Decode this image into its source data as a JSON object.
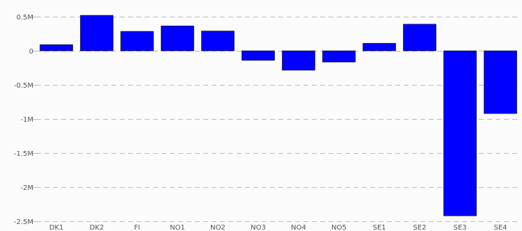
{
  "chart_data": {
    "type": "bar",
    "title": "",
    "xlabel": "",
    "ylabel": "",
    "categories": [
      "DK1",
      "DK2",
      "FI",
      "NO1",
      "NO2",
      "NO3",
      "NO4",
      "NO5",
      "SE1",
      "SE2",
      "SE3",
      "SE4"
    ],
    "values": [
      90000,
      520000,
      285000,
      365000,
      290000,
      -140000,
      -285000,
      -165000,
      110000,
      390000,
      -2420000,
      -920000
    ],
    "ylim": [
      -2500000,
      500000
    ],
    "yticks": [
      {
        "value": 500000,
        "label": "0.5M"
      },
      {
        "value": 0,
        "label": "0"
      },
      {
        "value": -500000,
        "label": "-0.5M"
      },
      {
        "value": -1000000,
        "label": "-1M"
      },
      {
        "value": -1500000,
        "label": "-1.5M"
      },
      {
        "value": -2000000,
        "label": "-2M"
      },
      {
        "value": -2500000,
        "label": "-2.5M"
      }
    ],
    "grid": true,
    "bar_color": "#0000ff",
    "bar_outline_color": "#000000"
  }
}
